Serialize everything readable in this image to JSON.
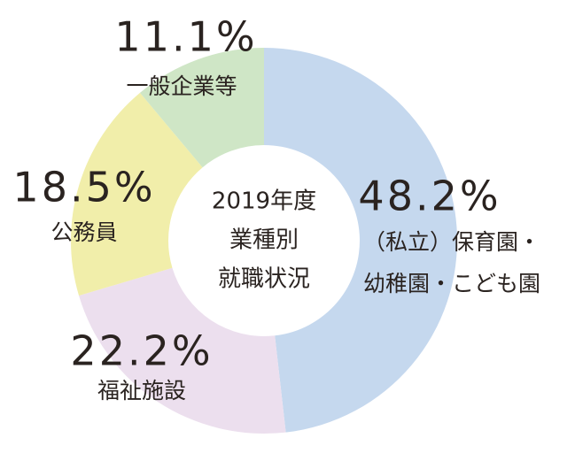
{
  "chart_data": {
    "type": "donut",
    "title": [
      "2019年度",
      "業種別",
      "就職状況"
    ],
    "categories": [
      "（私立）保育園・\n幼稚園・こども園",
      "福祉施設",
      "公務員",
      "一般企業等"
    ],
    "values": [
      48.2,
      22.2,
      18.5,
      11.1
    ],
    "value_labels": [
      "48.2%",
      "22.2%",
      "18.5%",
      "11.1%"
    ],
    "colors": [
      "#c5d8ee",
      "#ecdfee",
      "#f1eeaa",
      "#cfe6c6"
    ]
  }
}
